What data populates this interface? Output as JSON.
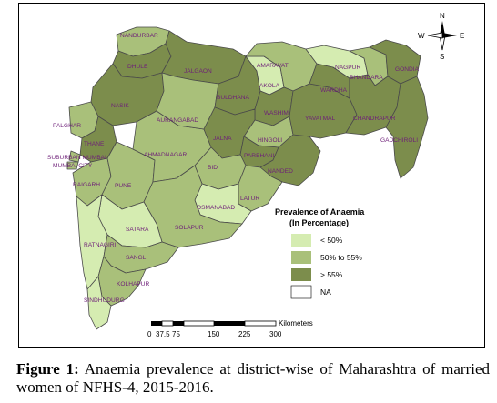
{
  "map": {
    "colors": {
      "low": "#d5ecb1",
      "mid": "#a9c07a",
      "high": "#7c8d4c",
      "na": "#ffffff",
      "border": "#4a4a4a",
      "label": "#6e1f78"
    },
    "districts": [
      {
        "name": "NANDURBAR",
        "class": "mid"
      },
      {
        "name": "DHULE",
        "class": "high"
      },
      {
        "name": "JALGAON",
        "class": "high"
      },
      {
        "name": "NASIK",
        "class": "high"
      },
      {
        "name": "AURANGABAD",
        "class": "mid"
      },
      {
        "name": "BULDHANA",
        "class": "high"
      },
      {
        "name": "AMARAVATI",
        "class": "mid"
      },
      {
        "name": "AKOLA",
        "class": "low"
      },
      {
        "name": "WASHIM",
        "class": "high"
      },
      {
        "name": "NAGPUR",
        "class": "low"
      },
      {
        "name": "BHANDARA",
        "class": "mid"
      },
      {
        "name": "GONDIA",
        "class": "high"
      },
      {
        "name": "WARDHA",
        "class": "high"
      },
      {
        "name": "YAVATMAL",
        "class": "high"
      },
      {
        "name": "CHANDRAPUR",
        "class": "high"
      },
      {
        "name": "GADCHIROLI",
        "class": "high"
      },
      {
        "name": "HINGOLI",
        "class": "mid"
      },
      {
        "name": "PARBHANI",
        "class": "high"
      },
      {
        "name": "NANDED",
        "class": "high"
      },
      {
        "name": "JALNA",
        "class": "high"
      },
      {
        "name": "BID",
        "class": "mid"
      },
      {
        "name": "LATUR",
        "class": "mid"
      },
      {
        "name": "OSMANABAD",
        "class": "low"
      },
      {
        "name": "SOLAPUR",
        "class": "mid"
      },
      {
        "name": "AHMADNAGAR",
        "class": "mid"
      },
      {
        "name": "PUNE",
        "class": "mid"
      },
      {
        "name": "SATARA",
        "class": "low"
      },
      {
        "name": "SANGLI",
        "class": "mid"
      },
      {
        "name": "KOLHAPUR",
        "class": "mid"
      },
      {
        "name": "SINDHUDURG",
        "class": "low"
      },
      {
        "name": "RATNAGIRI",
        "class": "low"
      },
      {
        "name": "RAIGARH",
        "class": "mid"
      },
      {
        "name": "THANE",
        "class": "high"
      },
      {
        "name": "PALGHAR",
        "class": "mid"
      },
      {
        "name": "SUBURBAN MUMBAI",
        "class": "mid"
      },
      {
        "name": "MUMBAI CITY",
        "class": "mid"
      }
    ],
    "legend": {
      "title_line1": "Prevalence of Anaemia",
      "title_line2": "(In Percentage)",
      "items": [
        {
          "label": "< 50%",
          "class": "low"
        },
        {
          "label": "50% to 55%",
          "class": "mid"
        },
        {
          "label": "> 55%",
          "class": "high"
        },
        {
          "label": "NA",
          "class": "na"
        }
      ]
    },
    "scale": {
      "unit": "Kilometers",
      "ticks": [
        "0",
        "37.5",
        "75",
        "150",
        "225",
        "300"
      ]
    },
    "compass": {
      "n": "N",
      "s": "S",
      "e": "E",
      "w": "W"
    }
  },
  "caption": {
    "label": "Figure 1:",
    "text": "Anaemia prevalence at district-wise of Maharashtra of married women of NFHS-4, 2015-2016."
  }
}
